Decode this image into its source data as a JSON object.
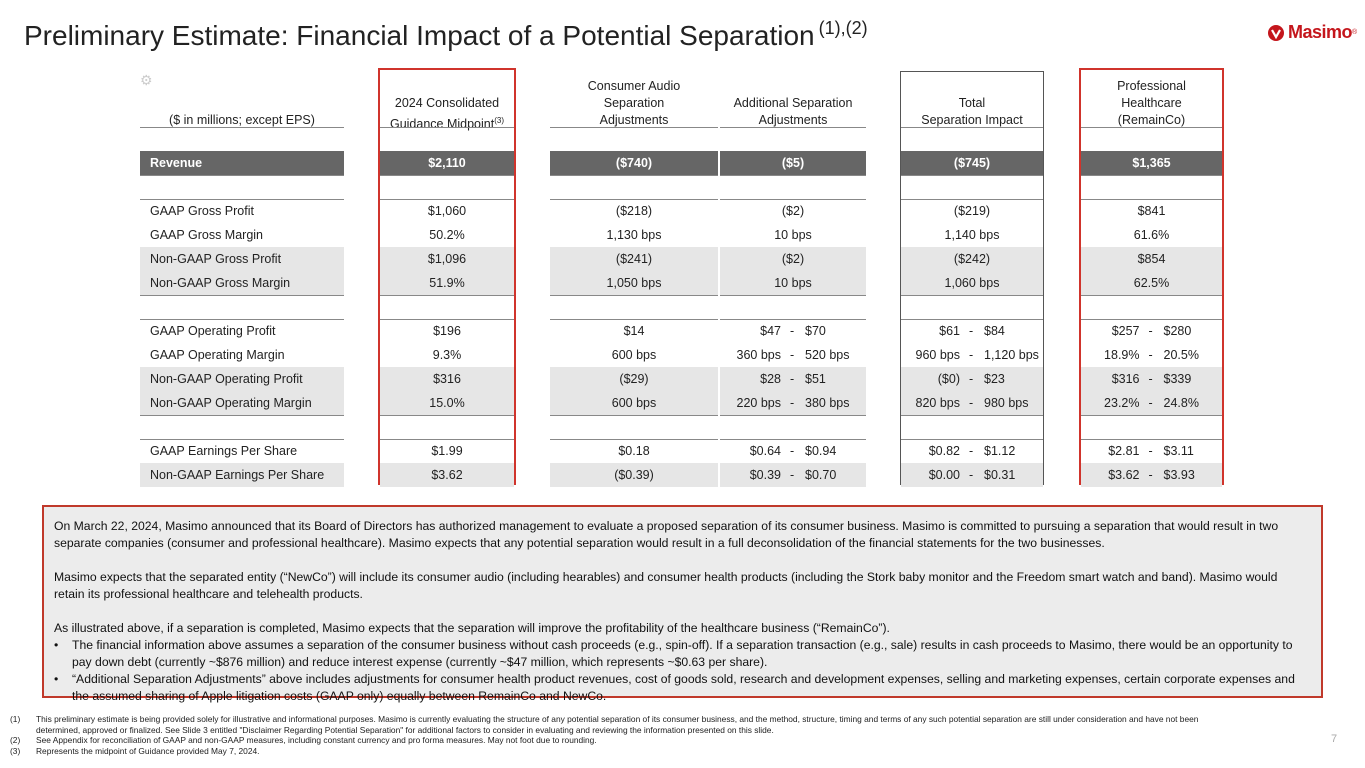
{
  "title": "Preliminary Estimate:  Financial Impact of a Potential Separation",
  "title_note": "(1),(2)",
  "logo": {
    "text": "Masimo",
    "icon": "masimo-logo-icon"
  },
  "headers": {
    "label": "($ in millions; except EPS)",
    "col1_line1": "2024 Consolidated",
    "col1_line2": "Guidance Midpoint",
    "col1_note": "(3)",
    "col2_line1": "Consumer Audio",
    "col2_line2": "Separation",
    "col2_line3": "Adjustments",
    "col3_line1": "Additional Separation",
    "col3_line2": "Adjustments",
    "col4_line1": "Total",
    "col4_line2": "Separation Impact",
    "col5_line1": "Professional",
    "col5_line2": "Healthcare",
    "col5_line3": "(RemainCo)"
  },
  "revenue": {
    "label": "Revenue",
    "c1": "$2,110",
    "c2": "($740)",
    "c3": "($5)",
    "c4": "($745)",
    "c5": "$1,365"
  },
  "rows": [
    {
      "label": "GAAP Gross Profit",
      "c1": "$1,060",
      "c2": "($218)",
      "c3": "($2)",
      "c4": "($219)",
      "c5": "$841"
    },
    {
      "label": "GAAP Gross Margin",
      "c1": "50.2%",
      "c2": "1,130 bps",
      "c3": "10 bps",
      "c4": "1,140 bps",
      "c5": "61.6%"
    },
    {
      "label": "Non-GAAP Gross Profit",
      "c1": "$1,096",
      "c2": "($241)",
      "c3": "($2)",
      "c4": "($242)",
      "c5": "$854"
    },
    {
      "label": "Non-GAAP Gross Margin",
      "c1": "51.9%",
      "c2": "1,050 bps",
      "c3": "10 bps",
      "c4": "1,060 bps",
      "c5": "62.5%"
    },
    {
      "label": "GAAP Operating Profit",
      "c1": "$196",
      "c2": "$14",
      "c3a": "$47",
      "c3b": "$70",
      "c4a": "$61",
      "c4b": "$84",
      "c5a": "$257",
      "c5b": "$280"
    },
    {
      "label": "GAAP Operating Margin",
      "c1": "9.3%",
      "c2": "600 bps",
      "c3a": "360 bps",
      "c3b": "520 bps",
      "c4a": "960 bps",
      "c4b": "1,120 bps",
      "c5a": "18.9%",
      "c5b": "20.5%"
    },
    {
      "label": "Non-GAAP Operating Profit",
      "c1": "$316",
      "c2": "($29)",
      "c3a": "$28",
      "c3b": "$51",
      "c4a": "($0)",
      "c4b": "$23",
      "c5a": "$316",
      "c5b": "$339"
    },
    {
      "label": "Non-GAAP Operating Margin",
      "c1": "15.0%",
      "c2": "600 bps",
      "c3a": "220 bps",
      "c3b": "380 bps",
      "c4a": "820 bps",
      "c4b": "980 bps",
      "c5a": "23.2%",
      "c5b": "24.8%"
    },
    {
      "label": "GAAP Earnings Per Share",
      "c1": "$1.99",
      "c2": "$0.18",
      "c3a": "$0.64",
      "c3b": "$0.94",
      "c4a": "$0.82",
      "c4b": "$1.12",
      "c5a": "$2.81",
      "c5b": "$3.11"
    },
    {
      "label": "Non-GAAP Earnings Per Share",
      "c1": "$3.62",
      "c2": "($0.39)",
      "c3a": "$0.39",
      "c3b": "$0.70",
      "c4a": "$0.00",
      "c4b": "$0.31",
      "c5a": "$3.62",
      "c5b": "$3.93"
    }
  ],
  "range_dash": "-",
  "info": {
    "p1": "On March 22, 2024, Masimo announced that its Board of Directors has authorized management to evaluate a proposed separation of its consumer business. Masimo is committed to pursuing a separation that would result in two separate companies (consumer and professional healthcare). Masimo expects that any potential separation would result in a full deconsolidation of the financial statements for the two businesses.",
    "p2": "Masimo expects that the separated entity (“NewCo”) will include its consumer audio (including hearables) and consumer health products (including the Stork baby monitor and the Freedom smart watch and band). Masimo would retain its professional healthcare and telehealth products.",
    "p3": "As illustrated above, if a separation is completed, Masimo expects that the separation will improve the profitability of the healthcare business (“RemainCo”).",
    "b1": "The financial information above assumes a separation of the consumer business without cash proceeds (e.g., spin-off). If a separation transaction (e.g., sale) results in cash proceeds to Masimo, there would be an opportunity to pay down debt (currently ~$876 million) and reduce interest expense (currently ~$47 million, which represents ~$0.63 per share).",
    "b2": "“Additional Separation Adjustments” above includes adjustments for consumer health product revenues, cost of goods sold, research and development expenses, selling and marketing expenses, certain corporate expenses and the assumed sharing of Apple litigation costs (GAAP only) equally between RemainCo and NewCo."
  },
  "footnotes": [
    {
      "num": "(1)",
      "text": "This preliminary estimate is being provided solely for illustrative and informational purposes. Masimo is currently evaluating the structure of any potential separation of its consumer business, and the method, structure, timing and terms of any such potential separation are still under consideration and have not been determined, approved or finalized. See Slide 3 entitled \"Disclaimer Regarding Potential Separation\" for additional factors to consider in evaluating and reviewing the information presented on this slide."
    },
    {
      "num": "(2)",
      "text": "See Appendix for reconciliation of GAAP and non-GAAP measures, including constant currency and pro forma measures. May not foot due to rounding."
    },
    {
      "num": "(3)",
      "text": "Represents the midpoint of Guidance provided May 7, 2024."
    }
  ],
  "page_number": "7",
  "colors": {
    "accent_red": "#d0342c",
    "dark_band": "#666666",
    "light_band": "#e6e6e6"
  }
}
